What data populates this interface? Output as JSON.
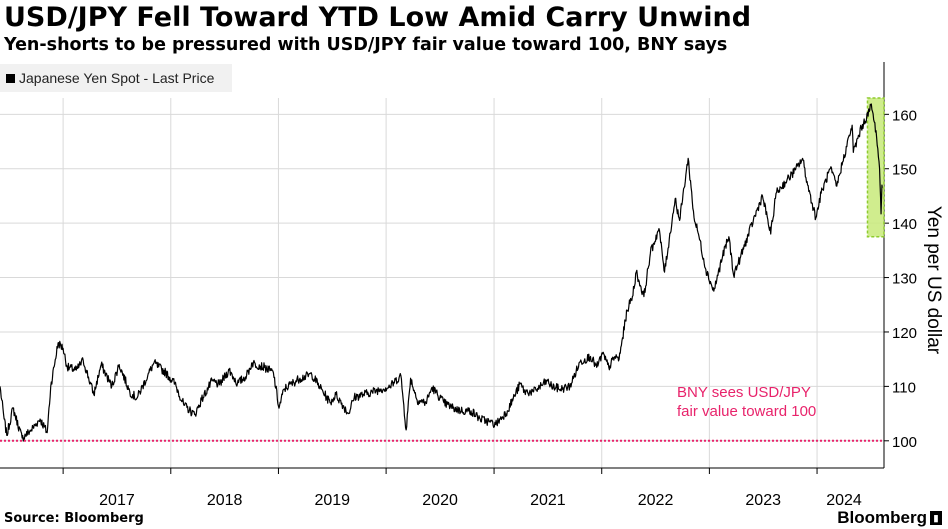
{
  "header": {
    "title": "USD/JPY Fell Toward YTD Low Amid Carry Unwind",
    "subtitle": "Yen-shorts to be pressured with USD/JPY fair value toward 100, BNY says"
  },
  "legend": {
    "label": "Japanese Yen Spot - Last Price"
  },
  "footer": {
    "source": "Source: Bloomberg",
    "brand": "Bloomberg"
  },
  "colors": {
    "line": "#000000",
    "reference": "#e8236b",
    "highlight_fill": "#c8ea7a",
    "highlight_stroke": "#8fcc2e",
    "grid": "#d9d9d9"
  },
  "chart_data": {
    "type": "line",
    "ylabel": "Yen per US dollar",
    "ylim": [
      95,
      163
    ],
    "xlim": [
      "2016-06-01",
      "2024-08-15"
    ],
    "yticks": [
      100,
      110,
      120,
      130,
      140,
      150,
      160
    ],
    "xticks": [
      {
        "label": "2017",
        "date": "2017-01-01"
      },
      {
        "label": "2018",
        "date": "2018-01-01"
      },
      {
        "label": "2019",
        "date": "2019-01-01"
      },
      {
        "label": "2020",
        "date": "2020-01-01"
      },
      {
        "label": "2021",
        "date": "2021-01-01"
      },
      {
        "label": "2022",
        "date": "2022-01-01"
      },
      {
        "label": "2023",
        "date": "2023-01-01"
      },
      {
        "label": "2024",
        "date": "2024-01-01"
      }
    ],
    "grid": true,
    "legend_position": "top-left",
    "series": [
      {
        "name": "Japanese Yen Spot - Last Price",
        "points": [
          [
            "2016-06-01",
            110.0
          ],
          [
            "2016-06-15",
            104.0
          ],
          [
            "2016-06-24",
            101.0
          ],
          [
            "2016-07-15",
            106.0
          ],
          [
            "2016-08-15",
            100.5
          ],
          [
            "2016-09-15",
            102.0
          ],
          [
            "2016-10-15",
            104.0
          ],
          [
            "2016-11-08",
            101.5
          ],
          [
            "2016-11-20",
            110.0
          ],
          [
            "2016-12-15",
            118.0
          ],
          [
            "2017-01-01",
            117.0
          ],
          [
            "2017-01-15",
            113.5
          ],
          [
            "2017-02-15",
            113.0
          ],
          [
            "2017-03-10",
            114.8
          ],
          [
            "2017-04-15",
            108.5
          ],
          [
            "2017-05-10",
            114.0
          ],
          [
            "2017-06-15",
            110.0
          ],
          [
            "2017-07-10",
            114.0
          ],
          [
            "2017-08-15",
            109.0
          ],
          [
            "2017-09-08",
            107.8
          ],
          [
            "2017-10-15",
            112.0
          ],
          [
            "2017-11-05",
            114.3
          ],
          [
            "2017-12-15",
            112.5
          ],
          [
            "2018-01-15",
            110.5
          ],
          [
            "2018-02-15",
            106.5
          ],
          [
            "2018-03-23",
            104.8
          ],
          [
            "2018-04-15",
            107.5
          ],
          [
            "2018-05-21",
            111.0
          ],
          [
            "2018-06-15",
            110.3
          ],
          [
            "2018-07-18",
            113.0
          ],
          [
            "2018-08-15",
            110.5
          ],
          [
            "2018-09-15",
            112.0
          ],
          [
            "2018-10-04",
            114.3
          ],
          [
            "2018-11-15",
            113.5
          ],
          [
            "2018-12-15",
            112.5
          ],
          [
            "2019-01-03",
            106.0
          ],
          [
            "2019-01-20",
            109.5
          ],
          [
            "2019-02-15",
            110.5
          ],
          [
            "2019-03-15",
            111.5
          ],
          [
            "2019-04-24",
            112.2
          ],
          [
            "2019-05-20",
            110.0
          ],
          [
            "2019-06-25",
            107.0
          ],
          [
            "2019-07-15",
            108.5
          ],
          [
            "2019-08-26",
            105.0
          ],
          [
            "2019-09-15",
            108.0
          ],
          [
            "2019-10-15",
            108.5
          ],
          [
            "2019-11-15",
            109.0
          ],
          [
            "2019-12-15",
            109.5
          ],
          [
            "2020-01-15",
            110.0
          ],
          [
            "2020-02-20",
            112.0
          ],
          [
            "2020-03-09",
            102.0
          ],
          [
            "2020-03-24",
            111.5
          ],
          [
            "2020-04-15",
            107.5
          ],
          [
            "2020-05-15",
            107.0
          ],
          [
            "2020-06-05",
            109.8
          ],
          [
            "2020-07-15",
            107.0
          ],
          [
            "2020-08-15",
            106.0
          ],
          [
            "2020-09-15",
            105.5
          ],
          [
            "2020-10-15",
            105.5
          ],
          [
            "2020-11-15",
            104.0
          ],
          [
            "2020-12-15",
            103.5
          ],
          [
            "2021-01-06",
            103.0
          ],
          [
            "2021-02-15",
            105.5
          ],
          [
            "2021-03-31",
            110.5
          ],
          [
            "2021-04-15",
            109.0
          ],
          [
            "2021-05-15",
            109.0
          ],
          [
            "2021-06-30",
            111.0
          ],
          [
            "2021-07-15",
            110.0
          ],
          [
            "2021-08-15",
            109.5
          ],
          [
            "2021-09-15",
            110.0
          ],
          [
            "2021-10-20",
            114.5
          ],
          [
            "2021-11-24",
            115.5
          ],
          [
            "2021-12-15",
            113.5
          ],
          [
            "2022-01-04",
            116.0
          ],
          [
            "2022-01-25",
            113.5
          ],
          [
            "2022-02-15",
            115.5
          ],
          [
            "2022-03-01",
            115.0
          ],
          [
            "2022-03-28",
            124.0
          ],
          [
            "2022-04-15",
            126.5
          ],
          [
            "2022-04-28",
            131.0
          ],
          [
            "2022-05-24",
            126.5
          ],
          [
            "2022-06-15",
            134.5
          ],
          [
            "2022-07-14",
            139.0
          ],
          [
            "2022-08-02",
            131.0
          ],
          [
            "2022-09-07",
            144.5
          ],
          [
            "2022-09-22",
            140.5
          ],
          [
            "2022-10-21",
            151.9
          ],
          [
            "2022-11-10",
            141.0
          ],
          [
            "2022-11-25",
            138.0
          ],
          [
            "2022-12-20",
            131.5
          ],
          [
            "2023-01-16",
            127.5
          ],
          [
            "2023-02-15",
            134.0
          ],
          [
            "2023-03-08",
            137.5
          ],
          [
            "2023-03-24",
            130.5
          ],
          [
            "2023-04-15",
            133.5
          ],
          [
            "2023-05-30",
            140.5
          ],
          [
            "2023-06-30",
            145.0
          ],
          [
            "2023-07-28",
            138.0
          ],
          [
            "2023-08-15",
            145.5
          ],
          [
            "2023-09-15",
            147.5
          ],
          [
            "2023-10-20",
            149.8
          ],
          [
            "2023-11-13",
            151.9
          ],
          [
            "2023-11-30",
            147.0
          ],
          [
            "2023-12-28",
            141.0
          ],
          [
            "2024-01-15",
            145.5
          ],
          [
            "2024-02-15",
            150.0
          ],
          [
            "2024-03-08",
            146.8
          ],
          [
            "2024-03-28",
            151.3
          ],
          [
            "2024-04-29",
            158.0
          ],
          [
            "2024-05-03",
            153.0
          ],
          [
            "2024-05-30",
            157.5
          ],
          [
            "2024-06-26",
            160.5
          ],
          [
            "2024-07-03",
            161.9
          ],
          [
            "2024-07-11",
            159.0
          ],
          [
            "2024-07-19",
            157.0
          ],
          [
            "2024-07-31",
            150.0
          ],
          [
            "2024-08-05",
            141.7
          ],
          [
            "2024-08-08",
            147.0
          ],
          [
            "2024-08-09",
            146.5
          ]
        ]
      }
    ],
    "reference_lines": [
      {
        "y": 100,
        "label_lines": [
          "BNY sees USD/JPY",
          "fair value toward 100"
        ]
      }
    ],
    "highlight": {
      "x0": "2024-06-20",
      "x1": "2024-08-15",
      "y0": 137.5,
      "y1": 163
    }
  }
}
